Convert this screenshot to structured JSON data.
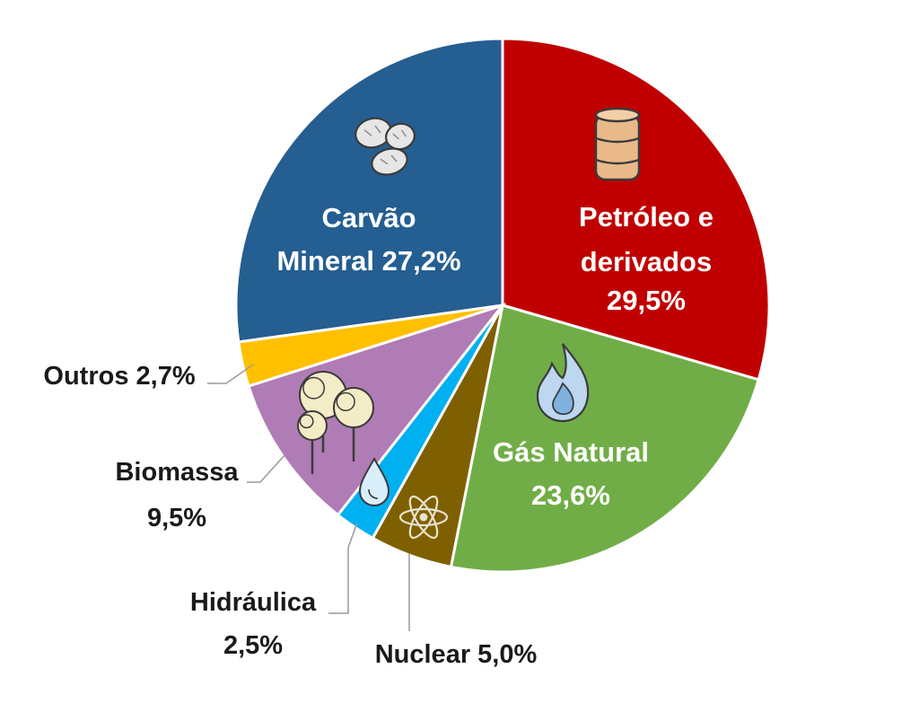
{
  "chart_data": {
    "type": "pie",
    "title": "",
    "start": "12 o'clock",
    "direction": "clockwise",
    "slices": [
      {
        "key": "petroleo",
        "label": "Petróleo e derivados 29,5%",
        "label_lines": [
          "Petróleo e",
          "derivados",
          "29,5%"
        ],
        "value": 29.5,
        "color": "#c00000",
        "icon": "oil-barrel-icon",
        "label_style": "inside"
      },
      {
        "key": "gas",
        "label": "Gás Natural 23,6%",
        "label_lines": [
          "Gás Natural",
          "23,6%"
        ],
        "value": 23.6,
        "color": "#70ad47",
        "icon": "flame-icon",
        "label_style": "inside"
      },
      {
        "key": "nuclear",
        "label": "Nuclear 5,0%",
        "label_lines": [
          "Nuclear 5,0%"
        ],
        "value": 5.0,
        "color": "#7f6000",
        "icon": "atom-icon",
        "label_style": "outside"
      },
      {
        "key": "hidraulica",
        "label": "Hidráulica 2,5%",
        "label_lines": [
          "Hidráulica",
          "2,5%"
        ],
        "value": 2.5,
        "color": "#00b0f0",
        "icon": "water-drop-icon",
        "label_style": "outside"
      },
      {
        "key": "biomassa",
        "label": "Biomassa 9,5%",
        "label_lines": [
          "Biomassa",
          "9,5%"
        ],
        "value": 9.5,
        "color": "#b07cb5",
        "icon": "trees-icon",
        "label_style": "outside"
      },
      {
        "key": "outros",
        "label": "Outros 2,7%",
        "label_lines": [
          "Outros 2,7%"
        ],
        "value": 2.7,
        "color": "#ffc000",
        "icon": "",
        "label_style": "outside"
      },
      {
        "key": "carvao",
        "label": "Carvão Mineral 27,2%",
        "label_lines": [
          "Carvão",
          "Mineral 27,2%"
        ],
        "value": 27.2,
        "color": "#255e91",
        "icon": "coal-icon",
        "label_style": "inside"
      }
    ]
  }
}
